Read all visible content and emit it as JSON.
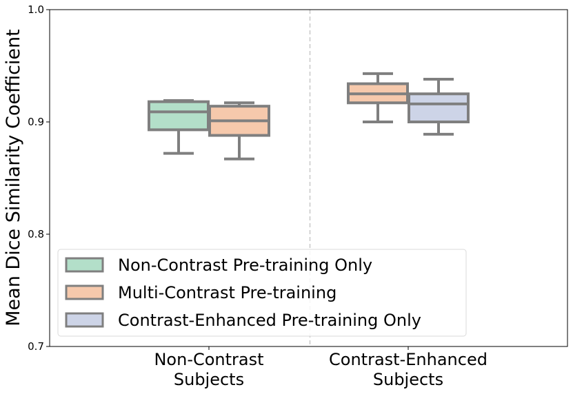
{
  "chart_data": {
    "type": "box",
    "ylabel": "Mean Dice Similarity Coefficient",
    "ylim": [
      0.7,
      1.0
    ],
    "yticks": [
      0.7,
      0.8,
      0.9,
      1.0
    ],
    "ytick_labels": [
      "0.7",
      "0.8",
      "0.9",
      "1.0"
    ],
    "categories": [
      {
        "line1": "Non-Contrast",
        "line2": "Subjects"
      },
      {
        "line1": "Contrast-Enhanced",
        "line2": "Subjects"
      }
    ],
    "series": [
      {
        "name": "Non-Contrast Pre-training Only",
        "color": "#b3dfc9",
        "boxes": [
          {
            "category": 0,
            "whisker_low": 0.872,
            "q1": 0.893,
            "median": 0.909,
            "q3": 0.918,
            "whisker_high": 0.919
          }
        ]
      },
      {
        "name": "Multi-Contrast Pre-training",
        "color": "#f6c9ac",
        "boxes": [
          {
            "category": 0,
            "whisker_low": 0.867,
            "q1": 0.888,
            "median": 0.901,
            "q3": 0.914,
            "whisker_high": 0.917
          },
          {
            "category": 1,
            "whisker_low": 0.9,
            "q1": 0.917,
            "median": 0.925,
            "q3": 0.934,
            "whisker_high": 0.943
          }
        ]
      },
      {
        "name": "Contrast-Enhanced Pre-training Only",
        "color": "#cdd4e7",
        "boxes": [
          {
            "category": 1,
            "whisker_low": 0.889,
            "q1": 0.9,
            "median": 0.916,
            "q3": 0.925,
            "whisker_high": 0.938
          }
        ]
      }
    ],
    "separator": "dashed vertical line between categories",
    "grid": false,
    "legend": "lower-left"
  }
}
